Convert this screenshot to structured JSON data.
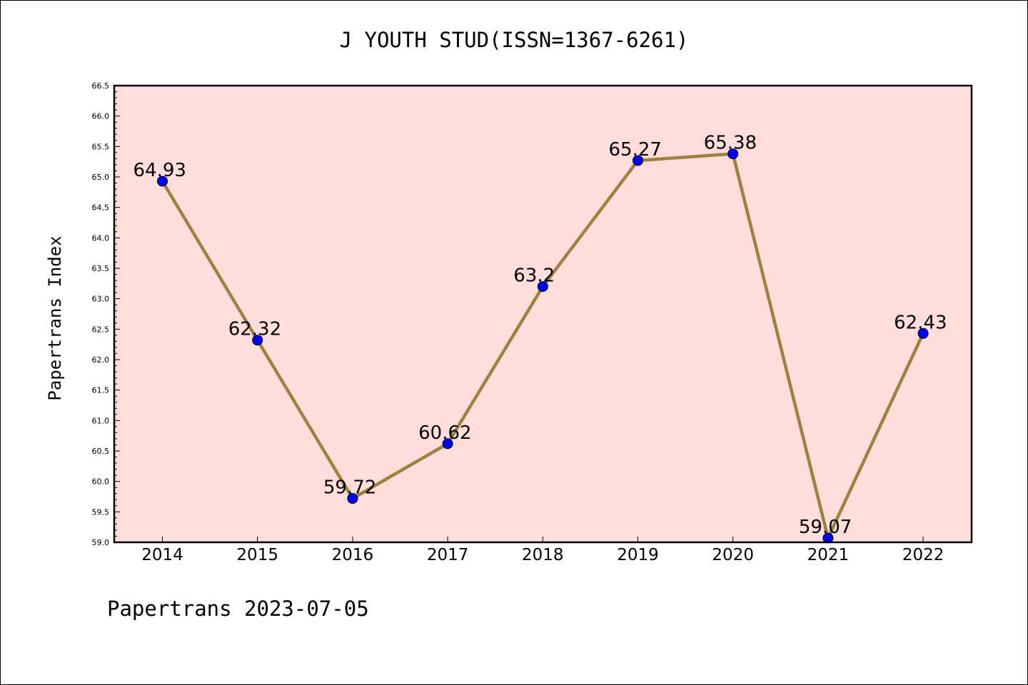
{
  "chart_data": {
    "type": "line",
    "title": "J YOUTH STUD(ISSN=1367-6261)",
    "ylabel": "Papertrans Index",
    "xlabel": "",
    "footer": "Papertrans 2023-07-05",
    "categories": [
      "2014",
      "2015",
      "2016",
      "2017",
      "2018",
      "2019",
      "2020",
      "2021",
      "2022"
    ],
    "series": [
      {
        "values": [
          64.93,
          62.32,
          59.72,
          60.62,
          63.2,
          65.27,
          65.38,
          59.07,
          62.43
        ],
        "labels": [
          "64.93",
          "62.32",
          "59.72",
          "60.62",
          "63.2",
          "65.27",
          "65.38",
          "59.07",
          "62.43"
        ]
      }
    ],
    "ylim": [
      59.0,
      66.5
    ],
    "yticks": [
      "59.0",
      "59.5",
      "60.0",
      "60.5",
      "61.0",
      "61.5",
      "62.0",
      "62.5",
      "63.0",
      "63.5",
      "64.0",
      "64.5",
      "65.0",
      "65.5",
      "66.0",
      "66.5"
    ],
    "grid": false,
    "colors": {
      "plot_background": "#FFDDDA",
      "line": "#9A8240",
      "marker": "#0000FF",
      "axis": "#000000"
    }
  }
}
